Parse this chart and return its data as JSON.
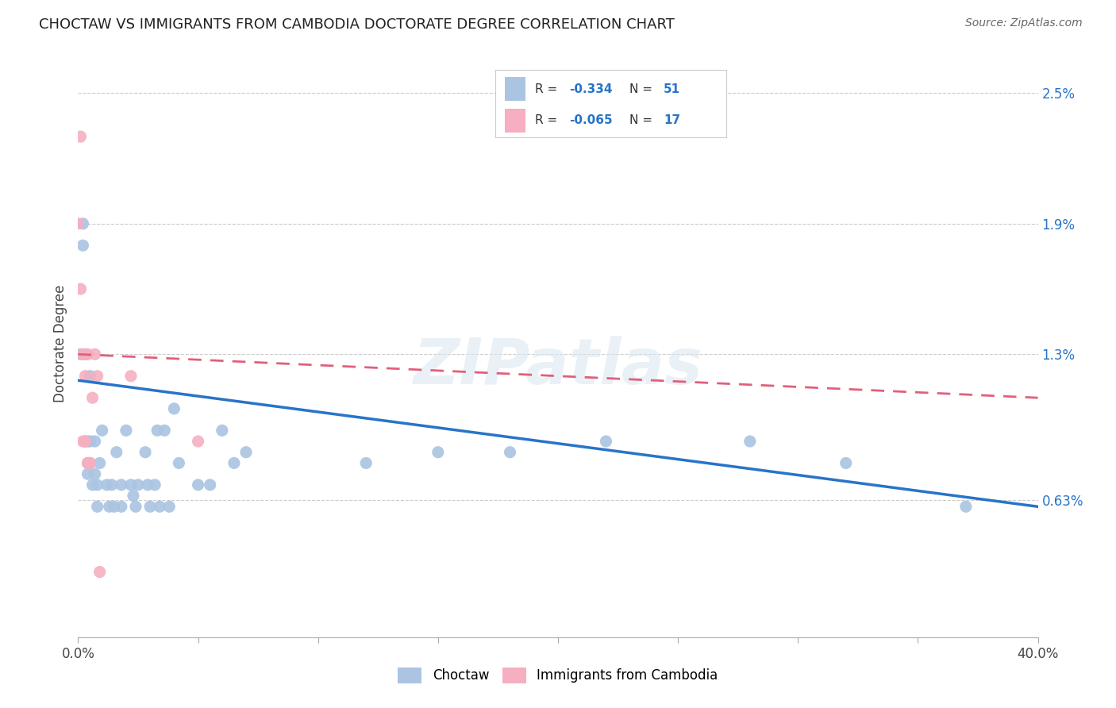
{
  "title": "CHOCTAW VS IMMIGRANTS FROM CAMBODIA DOCTORATE DEGREE CORRELATION CHART",
  "source": "Source: ZipAtlas.com",
  "ylabel": "Doctorate Degree",
  "ytick_labels": [
    "0.63%",
    "1.3%",
    "1.9%",
    "2.5%"
  ],
  "ytick_values": [
    0.0063,
    0.013,
    0.019,
    0.025
  ],
  "xlim": [
    0.0,
    0.4
  ],
  "ylim": [
    0.0,
    0.027
  ],
  "r1": "-0.334",
  "n1": "51",
  "r2": "-0.065",
  "n2": "17",
  "choctaw_color": "#aac4e2",
  "cambodia_color": "#f5afc0",
  "line_choctaw_color": "#2874c8",
  "line_cambodia_color": "#e0607a",
  "background_color": "#ffffff",
  "watermark": "ZIPatlas",
  "choctaw_x": [
    0.001,
    0.002,
    0.002,
    0.003,
    0.003,
    0.004,
    0.004,
    0.004,
    0.005,
    0.005,
    0.006,
    0.007,
    0.007,
    0.008,
    0.008,
    0.009,
    0.01,
    0.012,
    0.013,
    0.014,
    0.015,
    0.016,
    0.018,
    0.018,
    0.02,
    0.022,
    0.023,
    0.024,
    0.025,
    0.028,
    0.029,
    0.03,
    0.032,
    0.033,
    0.034,
    0.036,
    0.038,
    0.04,
    0.042,
    0.05,
    0.055,
    0.06,
    0.065,
    0.07,
    0.12,
    0.15,
    0.18,
    0.22,
    0.28,
    0.32,
    0.37
  ],
  "choctaw_y": [
    0.013,
    0.019,
    0.018,
    0.013,
    0.009,
    0.009,
    0.008,
    0.0075,
    0.012,
    0.009,
    0.007,
    0.009,
    0.0075,
    0.007,
    0.006,
    0.008,
    0.0095,
    0.007,
    0.006,
    0.007,
    0.006,
    0.0085,
    0.007,
    0.006,
    0.0095,
    0.007,
    0.0065,
    0.006,
    0.007,
    0.0085,
    0.007,
    0.006,
    0.007,
    0.0095,
    0.006,
    0.0095,
    0.006,
    0.0105,
    0.008,
    0.007,
    0.007,
    0.0095,
    0.008,
    0.0085,
    0.008,
    0.0085,
    0.0085,
    0.009,
    0.009,
    0.008,
    0.006
  ],
  "cambodia_x": [
    0.0,
    0.001,
    0.001,
    0.002,
    0.002,
    0.003,
    0.003,
    0.004,
    0.004,
    0.005,
    0.005,
    0.006,
    0.007,
    0.008,
    0.009,
    0.022,
    0.05
  ],
  "cambodia_y": [
    0.019,
    0.023,
    0.016,
    0.013,
    0.009,
    0.012,
    0.009,
    0.008,
    0.013,
    0.008,
    0.008,
    0.011,
    0.013,
    0.012,
    0.003,
    0.012,
    0.009
  ],
  "choctaw_trend_x": [
    0.0,
    0.4
  ],
  "choctaw_trend_y": [
    0.0118,
    0.006
  ],
  "cambodia_trend_x": [
    0.0,
    0.4
  ],
  "cambodia_trend_y": [
    0.013,
    0.011
  ],
  "marker_size": 120,
  "grid_color": "#cccccc"
}
